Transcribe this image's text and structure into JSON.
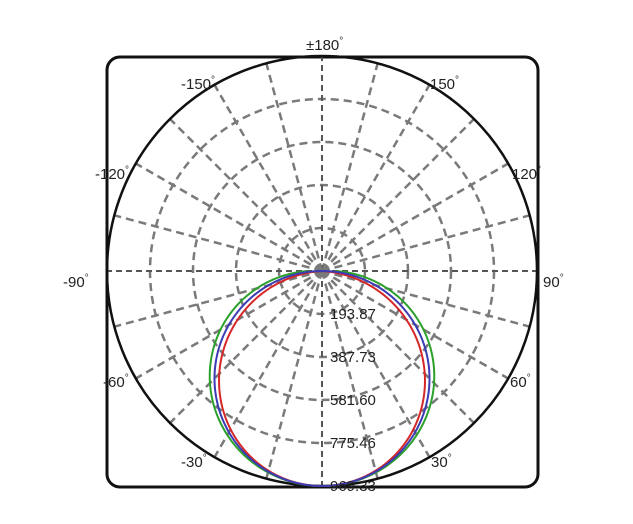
{
  "chart_data": {
    "type": "polar",
    "title": "",
    "angle_unit": "degrees",
    "zero_direction": "bottom",
    "angle_labels": [
      {
        "angle": 180,
        "text": "±180"
      },
      {
        "angle": 150,
        "text": "150"
      },
      {
        "angle": 120,
        "text": "120"
      },
      {
        "angle": 90,
        "text": "90"
      },
      {
        "angle": 60,
        "text": "60"
      },
      {
        "angle": 30,
        "text": "30"
      },
      {
        "angle": -30,
        "text": "-30"
      },
      {
        "angle": -60,
        "text": "-60"
      },
      {
        "angle": -90,
        "text": "-90"
      },
      {
        "angle": -120,
        "text": "-120"
      },
      {
        "angle": -150,
        "text": "-150"
      }
    ],
    "degree_symbol": "°",
    "radial_ticks": [
      {
        "value": 193.87,
        "text": "193.87"
      },
      {
        "value": 387.73,
        "text": "387.73"
      },
      {
        "value": 581.6,
        "text": "581.60"
      },
      {
        "value": 775.46,
        "text": "775.46"
      },
      {
        "value": 969.33,
        "text": "969.33"
      }
    ],
    "rmax": 969.33,
    "angle_grid_step": 15,
    "grid": true,
    "series": [
      {
        "color": "#2ca02c",
        "peak_value": 969.33,
        "shape": "cosine",
        "skew_deg": 3.5
      },
      {
        "color": "#d62728",
        "peak_value": 969.33,
        "shape": "cosine",
        "skew_deg": -3.5
      },
      {
        "color": "#3b3bb3",
        "peak_value": 969.33,
        "shape": "cosine",
        "skew_deg": 0
      }
    ]
  }
}
